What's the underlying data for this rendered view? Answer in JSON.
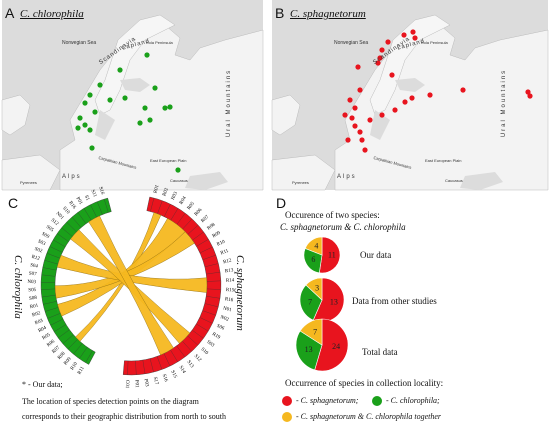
{
  "panels": {
    "a": {
      "letter": "A",
      "title": "C. chlorophila",
      "labels": {
        "norwegian_sea": "Norwegian Sea",
        "scandinavia": "Scandinavia",
        "lapland": "Lapland",
        "kola": "Kola Peninsula",
        "ural": "Ural Mountains",
        "alps": "Alps",
        "carpathian": "Carpathian Mountains",
        "east_european": "East European Plain",
        "caucasus": "Caucasus",
        "pyrenees": "Pyrenees"
      },
      "dot_color": "#1aa01a"
    },
    "b": {
      "letter": "B",
      "title": "C. sphagnetorum",
      "labels": {
        "norwegian_sea": "Norwegian Sea",
        "scandinavia": "Scandinavia",
        "lapland": "Lapland",
        "kola": "Kola Peninsula",
        "ural": "Ural Mountains",
        "alps": "Alps",
        "carpathian": "Carpathian Mountains",
        "east_european": "East European Plain",
        "caucasus": "Caucasus",
        "pyrenees": "Pyrenees"
      },
      "dot_color": "#e8141e"
    },
    "c": {
      "letter": "C",
      "left_label": "C. chlorophila",
      "right_label": "C. sphagnetorum",
      "right_codes": [
        "R01",
        "R02",
        "R03",
        "R04",
        "R05",
        "R06",
        "R07",
        "R08",
        "R09",
        "R10",
        "R11",
        "R12",
        "R13",
        "R14",
        "R15",
        "R16",
        "N01",
        "N02",
        "S06",
        "R19",
        "S03",
        "S10",
        "S12",
        "S13",
        "S14",
        "S15",
        "S16",
        "S17",
        "P03",
        "P01",
        "C01"
      ],
      "left_codes": [
        "R11",
        "R10",
        "R09",
        "R08",
        "R07",
        "R06",
        "R05",
        "R04",
        "R03",
        "R02",
        "R01",
        "S08",
        "S05",
        "N03",
        "S07",
        "S04",
        "R12",
        "S02",
        "S03",
        "S09",
        "S05",
        "S12",
        "N01",
        "S10",
        "R16",
        "P01",
        "S1",
        "S11",
        "S16"
      ],
      "legend_star": "* - Our data;",
      "legend_line1": "The location of species detection points on the diagram",
      "legend_line2": "corresponds to their geographic distribution from north to south"
    },
    "d": {
      "letter": "D",
      "heading1": "Occurence of two species:",
      "heading2": "C. sphagnetorum & C. chlorophila",
      "colors": {
        "sphag": "#e8141e",
        "chloro": "#1aa01a",
        "together": "#f5b820"
      },
      "pies": [
        {
          "label": "Our data",
          "sphag": 11,
          "chloro": 6,
          "together": 4
        },
        {
          "label": "Data from other studies",
          "sphag": 13,
          "chloro": 7,
          "together": 3
        },
        {
          "label": "Total data",
          "sphag": 24,
          "chloro": 13,
          "together": 7
        }
      ],
      "legend_title": "Occurrence of species in collection locality:",
      "legend_sphag": "- C. sphagnetorum;",
      "legend_chloro": "- C. chlorophila;",
      "legend_together": "- C. sphagnetorum & C. chlorophila  together"
    }
  }
}
